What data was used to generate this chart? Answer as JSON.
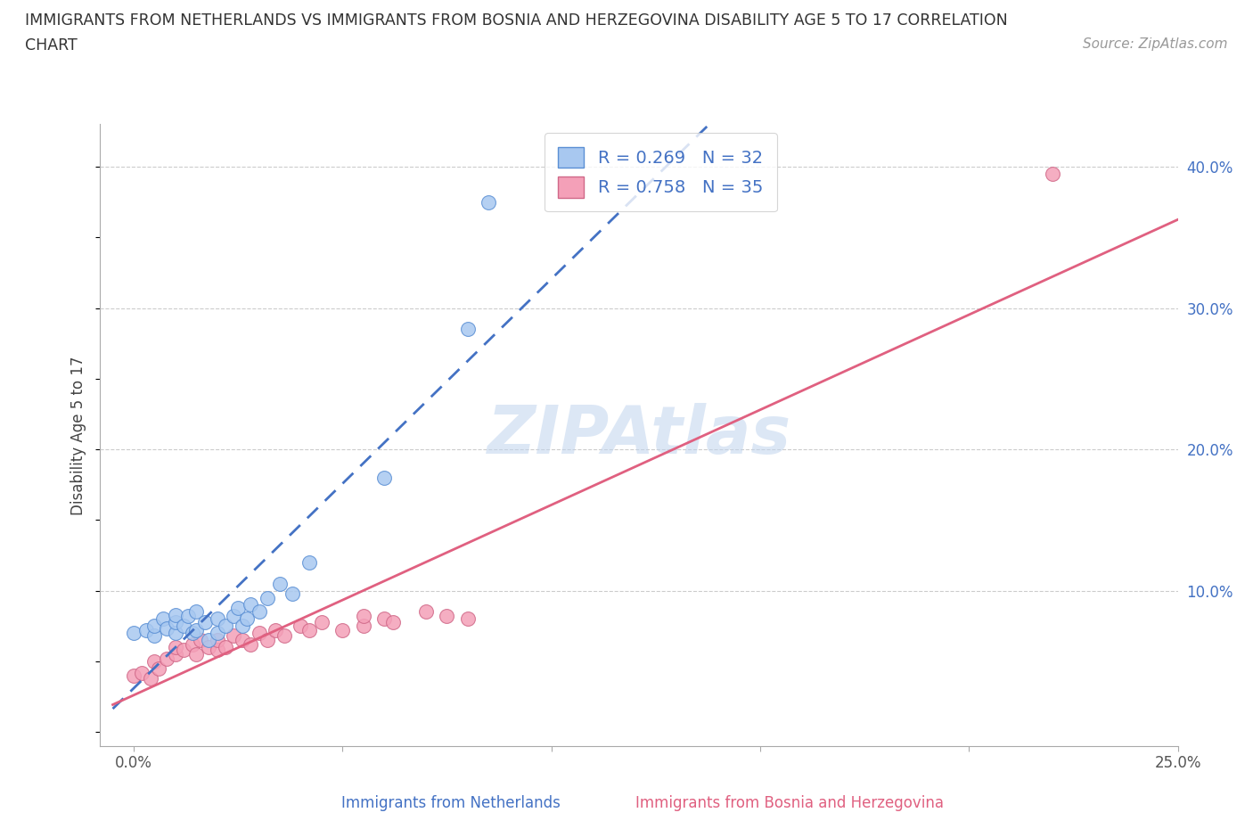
{
  "title_line1": "IMMIGRANTS FROM NETHERLANDS VS IMMIGRANTS FROM BOSNIA AND HERZEGOVINA DISABILITY AGE 5 TO 17 CORRELATION",
  "title_line2": "CHART",
  "source_text": "Source: ZipAtlas.com",
  "ylabel": "Disability Age 5 to 17",
  "xlim": [
    0.0,
    0.25
  ],
  "ylim": [
    -0.01,
    0.43
  ],
  "x_ticks": [
    0.0,
    0.05,
    0.1,
    0.15,
    0.2,
    0.25
  ],
  "x_tick_labels": [
    "0.0%",
    "",
    "",
    "",
    "",
    "25.0%"
  ],
  "y_ticks_right": [
    0.0,
    0.1,
    0.2,
    0.3,
    0.4
  ],
  "y_tick_labels_right": [
    "",
    "10.0%",
    "20.0%",
    "30.0%",
    "40.0%"
  ],
  "netherlands_color": "#a8c8f0",
  "netherlands_edge": "#5a8fd4",
  "bosnia_color": "#f4a0b8",
  "bosnia_edge": "#d06888",
  "trend_netherlands_color": "#4472c4",
  "trend_bosnia_color": "#e06080",
  "watermark": "ZIPAtlas",
  "legend_R_netherlands": "R = 0.269",
  "legend_N_netherlands": "N = 32",
  "legend_R_bosnia": "R = 0.758",
  "legend_N_bosnia": "N = 35",
  "netherlands_x": [
    0.0,
    0.003,
    0.005,
    0.005,
    0.007,
    0.008,
    0.01,
    0.01,
    0.01,
    0.012,
    0.013,
    0.014,
    0.015,
    0.015,
    0.017,
    0.018,
    0.02,
    0.02,
    0.022,
    0.024,
    0.025,
    0.026,
    0.027,
    0.028,
    0.03,
    0.032,
    0.035,
    0.038,
    0.042,
    0.06,
    0.08,
    0.085
  ],
  "netherlands_y": [
    0.07,
    0.072,
    0.068,
    0.075,
    0.08,
    0.073,
    0.07,
    0.078,
    0.083,
    0.075,
    0.082,
    0.07,
    0.072,
    0.085,
    0.078,
    0.065,
    0.07,
    0.08,
    0.075,
    0.082,
    0.088,
    0.075,
    0.08,
    0.09,
    0.085,
    0.095,
    0.105,
    0.098,
    0.12,
    0.18,
    0.285,
    0.375
  ],
  "bosnia_x": [
    0.0,
    0.002,
    0.004,
    0.005,
    0.006,
    0.008,
    0.01,
    0.01,
    0.012,
    0.014,
    0.015,
    0.016,
    0.018,
    0.02,
    0.02,
    0.022,
    0.024,
    0.026,
    0.028,
    0.03,
    0.032,
    0.034,
    0.036,
    0.04,
    0.042,
    0.045,
    0.05,
    0.055,
    0.055,
    0.06,
    0.062,
    0.07,
    0.075,
    0.08,
    0.22
  ],
  "bosnia_y": [
    0.04,
    0.042,
    0.038,
    0.05,
    0.045,
    0.052,
    0.055,
    0.06,
    0.058,
    0.062,
    0.055,
    0.065,
    0.06,
    0.058,
    0.065,
    0.06,
    0.068,
    0.065,
    0.062,
    0.07,
    0.065,
    0.072,
    0.068,
    0.075,
    0.072,
    0.078,
    0.072,
    0.075,
    0.082,
    0.08,
    0.078,
    0.085,
    0.082,
    0.08,
    0.395
  ]
}
